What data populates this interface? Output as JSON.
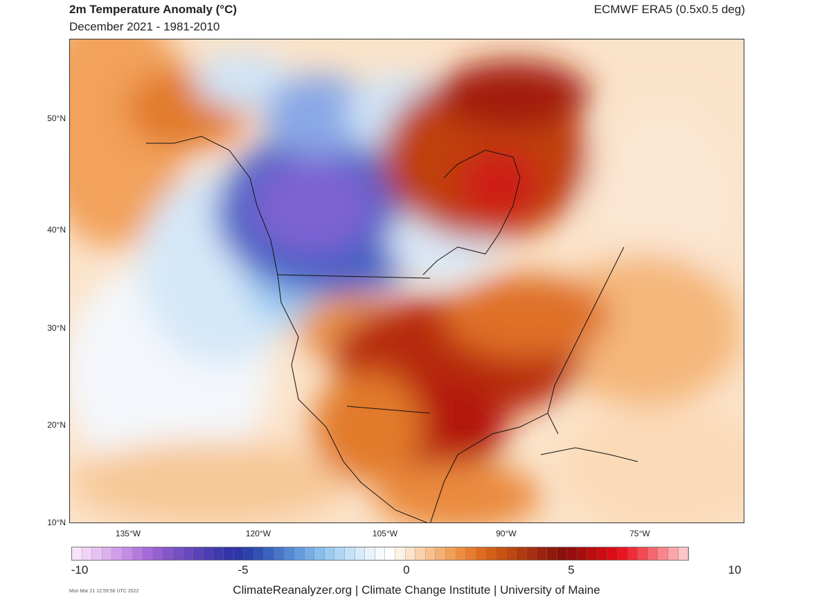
{
  "header": {
    "title": "2m Temperature Anomaly (°C)",
    "subtitle": "December 2021 - 1981-2010",
    "source": "ECMWF ERA5 (0.5x0.5 deg)"
  },
  "map": {
    "extent": {
      "lon_min": -142,
      "lon_max": -61,
      "lat_min": 10,
      "lat_max": 57
    },
    "lat_labels": [
      {
        "value": 50,
        "text": "50°N"
      },
      {
        "value": 40,
        "text": "40°N"
      },
      {
        "value": 30,
        "text": "30°N"
      },
      {
        "value": 20,
        "text": "20°N"
      },
      {
        "value": 10,
        "text": "10°N"
      }
    ],
    "lon_labels": [
      {
        "value": -135,
        "text": "135°W"
      },
      {
        "value": -120,
        "text": "120°W"
      },
      {
        "value": -105,
        "text": "105°W"
      },
      {
        "value": -90,
        "text": "90°W"
      },
      {
        "value": -75,
        "text": "75°W"
      }
    ],
    "anomaly_regions": [
      {
        "name": "alaska-warm",
        "anomaly": 3
      },
      {
        "name": "western-canada-cold",
        "anomaly": -5
      },
      {
        "name": "canadian-rockies-coldest",
        "anomaly": -7
      },
      {
        "name": "hudson-bay-warm",
        "anomaly": 6
      },
      {
        "name": "southern-us-warm",
        "anomaly": 6
      },
      {
        "name": "texas-warm",
        "anomaly": 7
      },
      {
        "name": "pacific-cool",
        "anomaly": -1
      }
    ]
  },
  "colorbar": {
    "min": -10,
    "max": 10,
    "labels": [
      "-10",
      "-5",
      "0",
      "5",
      "10"
    ],
    "colors": [
      "#f8e3f8",
      "#f0d3f5",
      "#e6c2f2",
      "#dcb0ef",
      "#d19eeb",
      "#c48ce6",
      "#b57ae0",
      "#a56ad9",
      "#9560d1",
      "#8556c9",
      "#7550c2",
      "#6749bd",
      "#5a42b8",
      "#4c3db3",
      "#3f39ae",
      "#3434aa",
      "#2c36a6",
      "#2c42ab",
      "#3151b3",
      "#3a63be",
      "#4776c9",
      "#5589d4",
      "#659bdd",
      "#76ade6",
      "#88bdec",
      "#9bcbf1",
      "#afd7f5",
      "#c3e2f8",
      "#d7ebfa",
      "#e9f3fc",
      "#f6f9fd",
      "#ffffff",
      "#fdf1e4",
      "#fbe2c8",
      "#f9d2ab",
      "#f7c18f",
      "#f5b074",
      "#f29f5a",
      "#ee8d42",
      "#e87c2e",
      "#e06c1e",
      "#d55e16",
      "#c95213",
      "#bd4612",
      "#b13a10",
      "#a52f0f",
      "#9a240d",
      "#90190b",
      "#8a100a",
      "#960e0b",
      "#a80d0d",
      "#bb0c0f",
      "#cc0b12",
      "#dc0c17",
      "#e91520",
      "#ef2d37",
      "#f24a52",
      "#f5686f",
      "#f8878d",
      "#fba6ab",
      "#fdc5c9"
    ]
  },
  "footer": {
    "credits": "ClimateReanalyzer.org | Climate Change Institute | University of Maine",
    "timestamp": "Mon Mar 21 12:59:56 UTC 2022"
  }
}
